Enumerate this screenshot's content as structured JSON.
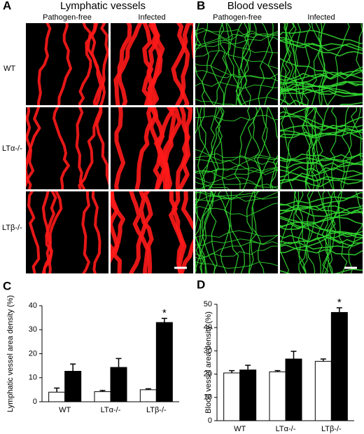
{
  "panel_a": {
    "label": "A",
    "title": "Lymphatic vessels",
    "columns": [
      "Pathogen-free",
      "Infected"
    ],
    "rows": [
      "WT",
      "LTα-/-",
      "LTβ-/-"
    ],
    "color": "#ff1a1a"
  },
  "panel_b": {
    "label": "B",
    "title": "Blood vessels",
    "columns": [
      "Pathogen-free",
      "Infected"
    ],
    "color": "#33dd33"
  },
  "chart_data": [
    {
      "type": "bar",
      "label": "C",
      "ylabel": "Lymphatic vessel area density (%)",
      "categories": [
        "WT",
        "LTα-/-",
        "LTβ-/-"
      ],
      "series": [
        {
          "color": "#ffffff",
          "values": [
            4,
            4.2,
            5
          ],
          "errors": [
            1.7,
            0.5,
            0.4
          ]
        },
        {
          "color": "#000000",
          "values": [
            12.7,
            14.3,
            33
          ],
          "errors": [
            3,
            3.7,
            1.7
          ]
        }
      ],
      "ylim": [
        0,
        40
      ],
      "yticks": [
        0,
        10,
        20,
        30,
        40
      ],
      "annotation": {
        "text": "*",
        "category": "LTβ-/-"
      }
    },
    {
      "type": "bar",
      "label": "D",
      "ylabel": "Blood vessel area density (%)",
      "categories": [
        "WT",
        "LTα-/-",
        "LTβ-/-"
      ],
      "series": [
        {
          "color": "#ffffff",
          "values": [
            20.5,
            21,
            25.5
          ],
          "errors": [
            1,
            0.5,
            1
          ]
        },
        {
          "color": "#000000",
          "values": [
            21.8,
            26.5,
            46.5
          ],
          "errors": [
            2,
            3.3,
            2
          ]
        }
      ],
      "ylim": [
        0,
        50
      ],
      "yticks": [
        0,
        10,
        20,
        30,
        40,
        50
      ],
      "annotation": {
        "text": "*",
        "category": "LTβ-/-"
      }
    }
  ]
}
